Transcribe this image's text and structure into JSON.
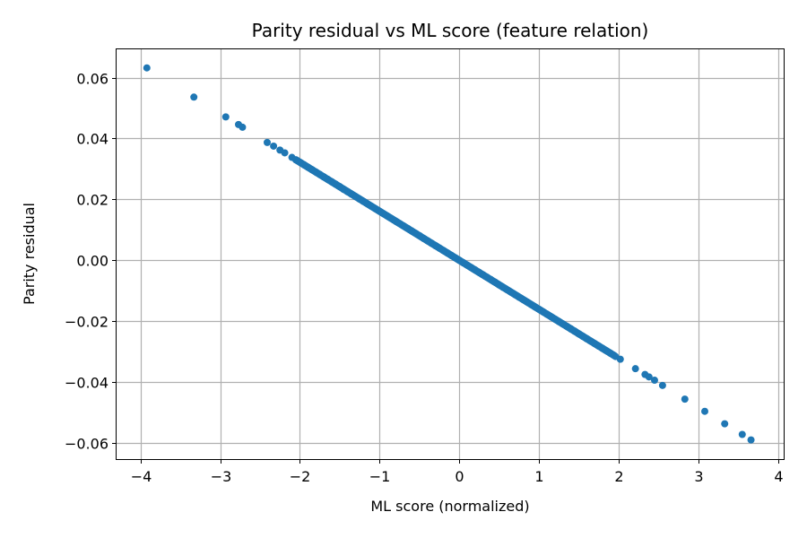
{
  "chart_data": {
    "type": "scatter",
    "title": "Parity residual vs ML score (feature relation)",
    "xlabel": "ML score (normalized)",
    "ylabel": "Parity residual",
    "xlim": [
      -4.3,
      4.07
    ],
    "ylim": [
      -0.0653,
      0.0693
    ],
    "x_ticks": [
      {
        "value": -4,
        "label": "−4"
      },
      {
        "value": -3,
        "label": "−3"
      },
      {
        "value": -2,
        "label": "−2"
      },
      {
        "value": -1,
        "label": "−1"
      },
      {
        "value": 0,
        "label": "0"
      },
      {
        "value": 1,
        "label": "1"
      },
      {
        "value": 2,
        "label": "2"
      },
      {
        "value": 3,
        "label": "3"
      },
      {
        "value": 4,
        "label": "4"
      }
    ],
    "y_ticks": [
      {
        "value": 0.06,
        "label": "0.06"
      },
      {
        "value": 0.04,
        "label": "0.04"
      },
      {
        "value": 0.02,
        "label": "0.02"
      },
      {
        "value": 0.0,
        "label": "0.00"
      },
      {
        "value": -0.02,
        "label": "−0.02"
      },
      {
        "value": -0.04,
        "label": "−0.04"
      },
      {
        "value": -0.06,
        "label": "−0.06"
      }
    ],
    "grid": true,
    "marker_color": "#1f77b4",
    "relation": "y ≈ -0.0161 * x",
    "series": [
      {
        "points": [
          [
            -3.92,
            0.0632
          ],
          [
            -3.33,
            0.0536
          ],
          [
            -2.93,
            0.0471
          ],
          [
            -2.77,
            0.0446
          ],
          [
            -2.72,
            0.0437
          ],
          [
            -2.41,
            0.0387
          ],
          [
            -2.33,
            0.0375
          ],
          [
            -2.25,
            0.0362
          ],
          [
            -2.19,
            0.0353
          ],
          [
            -2.1,
            0.0338
          ],
          [
            -2.05,
            0.033
          ],
          [
            -2.0,
            0.0322
          ],
          [
            -1.95,
            0.0314
          ],
          [
            -1.9,
            0.0306
          ],
          [
            -1.85,
            0.0298
          ],
          [
            -1.8,
            0.029
          ],
          [
            -1.75,
            0.0282
          ],
          [
            -1.7,
            0.0274
          ],
          [
            -1.65,
            0.0266
          ],
          [
            -1.6,
            0.0258
          ],
          [
            -1.55,
            0.025
          ],
          [
            -1.5,
            0.0242
          ],
          [
            -1.45,
            0.0233
          ],
          [
            -1.4,
            0.0225
          ],
          [
            -1.35,
            0.0217
          ],
          [
            -1.3,
            0.0209
          ],
          [
            -1.25,
            0.0201
          ],
          [
            -1.2,
            0.0193
          ],
          [
            -1.15,
            0.0185
          ],
          [
            -1.1,
            0.0177
          ],
          [
            -1.05,
            0.0169
          ],
          [
            -1.0,
            0.0161
          ],
          [
            -0.95,
            0.0153
          ],
          [
            -0.9,
            0.0145
          ],
          [
            -0.85,
            0.0137
          ],
          [
            -0.8,
            0.0129
          ],
          [
            -0.75,
            0.0121
          ],
          [
            -0.7,
            0.0113
          ],
          [
            -0.65,
            0.0105
          ],
          [
            -0.6,
            0.0097
          ],
          [
            -0.55,
            0.0089
          ],
          [
            -0.5,
            0.0081
          ],
          [
            -0.45,
            0.0072
          ],
          [
            -0.4,
            0.0064
          ],
          [
            -0.35,
            0.0056
          ],
          [
            -0.3,
            0.0048
          ],
          [
            -0.25,
            0.004
          ],
          [
            -0.2,
            0.0032
          ],
          [
            -0.15,
            0.0024
          ],
          [
            -0.1,
            0.0016
          ],
          [
            -0.05,
            0.0008
          ],
          [
            0.0,
            0.0
          ],
          [
            0.05,
            -0.0008
          ],
          [
            0.1,
            -0.0016
          ],
          [
            0.15,
            -0.0024
          ],
          [
            0.2,
            -0.0032
          ],
          [
            0.25,
            -0.004
          ],
          [
            0.3,
            -0.0048
          ],
          [
            0.35,
            -0.0056
          ],
          [
            0.4,
            -0.0064
          ],
          [
            0.45,
            -0.0072
          ],
          [
            0.5,
            -0.0081
          ],
          [
            0.55,
            -0.0089
          ],
          [
            0.6,
            -0.0097
          ],
          [
            0.65,
            -0.0105
          ],
          [
            0.7,
            -0.0113
          ],
          [
            0.75,
            -0.0121
          ],
          [
            0.8,
            -0.0129
          ],
          [
            0.85,
            -0.0137
          ],
          [
            0.9,
            -0.0145
          ],
          [
            0.95,
            -0.0153
          ],
          [
            1.0,
            -0.0161
          ],
          [
            1.05,
            -0.0169
          ],
          [
            1.1,
            -0.0177
          ],
          [
            1.15,
            -0.0185
          ],
          [
            1.2,
            -0.0193
          ],
          [
            1.25,
            -0.0201
          ],
          [
            1.3,
            -0.0209
          ],
          [
            1.35,
            -0.0217
          ],
          [
            1.4,
            -0.0225
          ],
          [
            1.45,
            -0.0233
          ],
          [
            1.5,
            -0.0242
          ],
          [
            1.55,
            -0.025
          ],
          [
            1.6,
            -0.0258
          ],
          [
            1.65,
            -0.0266
          ],
          [
            1.7,
            -0.0274
          ],
          [
            1.75,
            -0.0282
          ],
          [
            1.8,
            -0.029
          ],
          [
            1.85,
            -0.0298
          ],
          [
            1.9,
            -0.0306
          ],
          [
            1.96,
            -0.0316
          ],
          [
            2.02,
            -0.0325
          ],
          [
            2.21,
            -0.0356
          ],
          [
            2.33,
            -0.0375
          ],
          [
            2.38,
            -0.0383
          ],
          [
            2.45,
            -0.0394
          ],
          [
            2.55,
            -0.0411
          ],
          [
            2.83,
            -0.0456
          ],
          [
            3.08,
            -0.0496
          ],
          [
            3.33,
            -0.0537
          ],
          [
            3.55,
            -0.0572
          ],
          [
            3.66,
            -0.059
          ]
        ]
      }
    ]
  }
}
